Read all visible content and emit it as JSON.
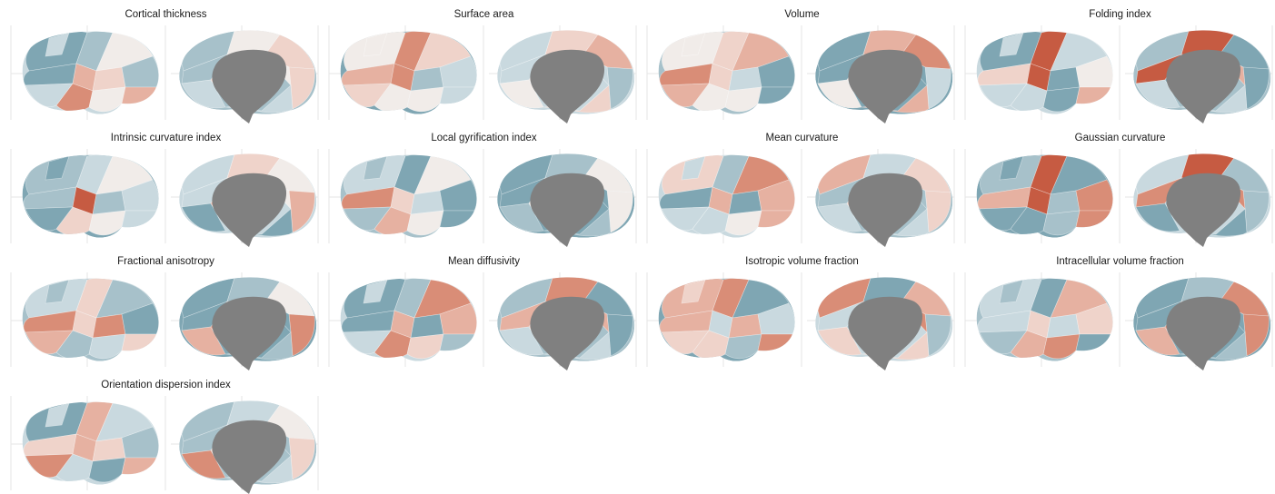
{
  "colors": {
    "background": "#ffffff",
    "gridline": "#e6e6e6",
    "medial_wall": "#808080",
    "palette_low": [
      "#7fa6b3",
      "#a7c1ca",
      "#c9d9df",
      "#e3e9ec"
    ],
    "palette_mid": "#f1ece9",
    "palette_high": [
      "#efd3ca",
      "#e6b1a1",
      "#d98d77",
      "#c65b42"
    ]
  },
  "panels": [
    {
      "title": "Cortical thickness",
      "lateral": [
        "lo",
        "lo",
        "mid",
        "lo",
        "hi",
        "hi",
        "hi",
        "lo",
        "lo",
        "mid",
        "hi",
        "lo"
      ],
      "medial": [
        "lo",
        "mid",
        "hi",
        "lo",
        "lo",
        "hi",
        "mid",
        "lo",
        "hi",
        "mid"
      ]
    },
    {
      "title": "Surface area",
      "lateral": [
        "mid",
        "hi",
        "hi",
        "hi",
        "hi",
        "mid",
        "lo",
        "lo",
        "hi",
        "mid",
        "lo",
        "mid"
      ],
      "medial": [
        "lo",
        "hi",
        "hi",
        "lo",
        "mid",
        "lo",
        "lo",
        "hi",
        "mid",
        "lo"
      ]
    },
    {
      "title": "Volume",
      "lateral": [
        "mid",
        "hi",
        "hi",
        "hi",
        "hi",
        "mid",
        "lo",
        "lo",
        "hi",
        "mid",
        "lo",
        "mid"
      ],
      "medial": [
        "lo",
        "hi",
        "hi",
        "lo",
        "mid",
        "lo",
        "lo",
        "hi",
        "mid",
        "lo"
      ]
    },
    {
      "title": "Folding index",
      "lateral": [
        "lo",
        "max",
        "lo",
        "hi",
        "max",
        "lo",
        "lo",
        "mid",
        "lo",
        "lo",
        "hi",
        "lo"
      ],
      "medial": [
        "lo",
        "max",
        "lo",
        "max",
        "lo",
        "lo",
        "hi",
        "lo",
        "lo",
        "mid"
      ]
    },
    {
      "title": "Intrinsic curvature index",
      "lateral": [
        "lo",
        "lo",
        "mid",
        "lo",
        "max",
        "hi",
        "lo",
        "lo",
        "lo",
        "mid",
        "lo",
        "lo"
      ],
      "medial": [
        "lo",
        "hi",
        "mid",
        "lo",
        "lo",
        "hi",
        "mid",
        "lo",
        "hi",
        "lo"
      ]
    },
    {
      "title": "Local gyrification index",
      "lateral": [
        "lo",
        "lo",
        "mid",
        "hi",
        "hi",
        "hi",
        "lo",
        "lo",
        "lo",
        "mid",
        "lo",
        "lo"
      ],
      "medial": [
        "lo",
        "lo",
        "mid",
        "lo",
        "lo",
        "mid",
        "lo",
        "lo",
        "mid",
        "lo"
      ]
    },
    {
      "title": "Mean curvature",
      "lateral": [
        "hi",
        "lo",
        "hi",
        "lo",
        "hi",
        "lo",
        "lo",
        "hi",
        "lo",
        "mid",
        "hi",
        "lo"
      ],
      "medial": [
        "hi",
        "lo",
        "hi",
        "lo",
        "lo",
        "hi",
        "lo",
        "lo",
        "hi",
        "mid"
      ]
    },
    {
      "title": "Gaussian curvature",
      "lateral": [
        "lo",
        "max",
        "lo",
        "hi",
        "max",
        "lo",
        "lo",
        "hi",
        "lo",
        "lo",
        "hi",
        "lo"
      ],
      "medial": [
        "lo",
        "max",
        "lo",
        "hi",
        "lo",
        "lo",
        "hi",
        "lo",
        "lo",
        "mid"
      ]
    },
    {
      "title": "Fractional anisotropy",
      "lateral": [
        "lo",
        "hi",
        "lo",
        "hi",
        "hi",
        "lo",
        "hi",
        "lo",
        "hi",
        "lo",
        "hi",
        "lo"
      ],
      "medial": [
        "lo",
        "lo",
        "mid",
        "lo",
        "hi",
        "hi",
        "lo",
        "lo",
        "hi",
        "lo"
      ]
    },
    {
      "title": "Mean diffusivity",
      "lateral": [
        "lo",
        "lo",
        "hi",
        "lo",
        "hi",
        "hi",
        "lo",
        "hi",
        "lo",
        "hi",
        "lo",
        "lo"
      ],
      "medial": [
        "lo",
        "hi",
        "lo",
        "hi",
        "lo",
        "lo",
        "hi",
        "lo",
        "hi",
        "lo"
      ]
    },
    {
      "title": "Isotropic volume fraction",
      "lateral": [
        "hi",
        "hi",
        "lo",
        "hi",
        "lo",
        "hi",
        "hi",
        "lo",
        "hi",
        "lo",
        "hi",
        "hi"
      ],
      "medial": [
        "hi",
        "lo",
        "hi",
        "lo",
        "hi",
        "lo",
        "hi",
        "hi",
        "lo",
        "hi"
      ]
    },
    {
      "title": "Intracellular volume fraction",
      "lateral": [
        "lo",
        "lo",
        "hi",
        "lo",
        "hi",
        "hi",
        "lo",
        "hi",
        "lo",
        "hi",
        "lo",
        "lo"
      ],
      "medial": [
        "lo",
        "lo",
        "hi",
        "lo",
        "hi",
        "hi",
        "lo",
        "lo",
        "hi",
        "lo"
      ]
    },
    {
      "title": "Orientation dispersion index",
      "lateral": [
        "lo",
        "hi",
        "lo",
        "hi",
        "hi",
        "lo",
        "hi",
        "lo",
        "hi",
        "lo",
        "hi",
        "lo"
      ],
      "medial": [
        "lo",
        "lo",
        "mid",
        "lo",
        "hi",
        "hi",
        "lo",
        "lo",
        "hi",
        "lo"
      ]
    }
  ]
}
